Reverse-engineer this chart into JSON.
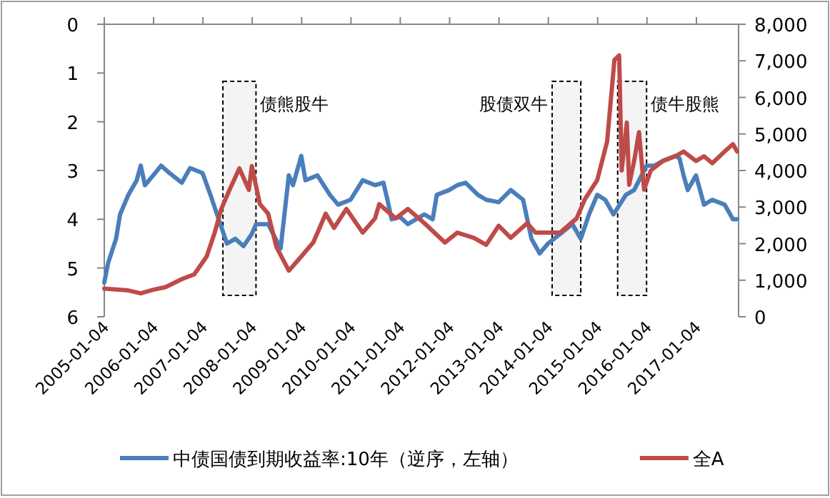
{
  "chart_data": {
    "type": "line",
    "xlim": [
      "2005-01-04",
      "2017-11-12"
    ],
    "xticks": [
      {
        "value": "2005-01-04",
        "label": "2005-01-04"
      },
      {
        "value": "2006-01-04",
        "label": "2006-01-04"
      },
      {
        "value": "2007-01-04",
        "label": "2007-01-04"
      },
      {
        "value": "2008-01-04",
        "label": "2008-01-04"
      },
      {
        "value": "2009-01-04",
        "label": "2009-01-04"
      },
      {
        "value": "2010-01-04",
        "label": "2010-01-04"
      },
      {
        "value": "2011-01-04",
        "label": "2011-01-04"
      },
      {
        "value": "2012-01-04",
        "label": "2012-01-04"
      },
      {
        "value": "2013-01-04",
        "label": "2013-01-04"
      },
      {
        "value": "2014-01-04",
        "label": "2014-01-04"
      },
      {
        "value": "2015-01-04",
        "label": "2015-01-04"
      },
      {
        "value": "2016-01-04",
        "label": "2016-01-04"
      },
      {
        "value": "2017-01-04",
        "label": "2017-01-04"
      }
    ],
    "ylim": [
      6,
      0
    ],
    "yticks": [
      0,
      1,
      2,
      3,
      4,
      5,
      6
    ],
    "y2lim": [
      0,
      8000
    ],
    "y2ticks": [
      0,
      {
        "value": 1000,
        "label": "1,000"
      },
      {
        "value": 2000,
        "label": "2,000"
      },
      {
        "value": 3000,
        "label": "3,000"
      },
      {
        "value": 4000,
        "label": "4,000"
      },
      {
        "value": 5000,
        "label": "5,000"
      },
      {
        "value": 6000,
        "label": "6,000"
      },
      {
        "value": 7000,
        "label": "7,000"
      },
      {
        "value": 8000,
        "label": "8,000"
      }
    ],
    "legend": "bottom",
    "series": [
      {
        "name": "中债国债到期收益率:10年（逆序，左轴）",
        "color": "#4a7ebb",
        "x": [
          "2005-01-04",
          "2005-02",
          "2005-04",
          "2005-05",
          "2005-07",
          "2005-09",
          "2005-10",
          "2005-11",
          "2006-01",
          "2006-03",
          "2006-05",
          "2006-08",
          "2006-10",
          "2007-01",
          "2007-03",
          "2007-05",
          "2007-07",
          "2007-09",
          "2007-11",
          "2008-01",
          "2008-02",
          "2008-05",
          "2008-08",
          "2008-10",
          "2008-11",
          "2009-01",
          "2009-02",
          "2009-05",
          "2009-08",
          "2009-10",
          "2010-01",
          "2010-04",
          "2010-07",
          "2010-09",
          "2010-10",
          "2010-11",
          "2011-01",
          "2011-03",
          "2011-07",
          "2011-09",
          "2011-10",
          "2012-01",
          "2012-03",
          "2012-05",
          "2012-08",
          "2012-10",
          "2013-01",
          "2013-04",
          "2013-07",
          "2013-09",
          "2013-11",
          "2014-01",
          "2014-04",
          "2014-07",
          "2014-09",
          "2014-11",
          "2015-01",
          "2015-03",
          "2015-05",
          "2015-08",
          "2015-10",
          "2016-01",
          "2016-03",
          "2016-05",
          "2016-08",
          "2016-09",
          "2016-10",
          "2016-11",
          "2017-01",
          "2017-03",
          "2017-05",
          "2017-08",
          "2017-10",
          "2017-11"
        ],
        "values": [
          5.3,
          4.9,
          4.4,
          3.9,
          3.5,
          3.2,
          2.9,
          3.3,
          3.1,
          2.9,
          3.05,
          3.25,
          2.95,
          3.05,
          3.5,
          4.0,
          4.5,
          4.4,
          4.55,
          4.3,
          4.1,
          4.1,
          4.6,
          3.1,
          3.3,
          2.7,
          3.2,
          3.1,
          3.5,
          3.7,
          3.6,
          3.2,
          3.3,
          3.25,
          3.6,
          4.0,
          3.95,
          4.1,
          3.9,
          4.0,
          3.5,
          3.4,
          3.3,
          3.25,
          3.5,
          3.6,
          3.65,
          3.4,
          3.6,
          4.4,
          4.7,
          4.5,
          4.3,
          4.1,
          4.4,
          3.9,
          3.5,
          3.6,
          3.9,
          3.5,
          3.4,
          2.9,
          2.9,
          2.8,
          2.7,
          2.75,
          3.1,
          3.4,
          3.1,
          3.7,
          3.6,
          3.7,
          4.0,
          4.0
        ]
      },
      {
        "name": "全A",
        "color": "#be4b48",
        "axis": "y2",
        "x": [
          "2005-01-04",
          "2005-07",
          "2005-10",
          "2006-01",
          "2006-04",
          "2006-08",
          "2006-11",
          "2007-02",
          "2007-04",
          "2007-05-20",
          "2007-07-20",
          "2007-10",
          "2007-12-10",
          "2008-01",
          "2008-03",
          "2008-05",
          "2008-07",
          "2008-10",
          "2009-01",
          "2009-04",
          "2009-07",
          "2009-09",
          "2009-12",
          "2010-04",
          "2010-07",
          "2010-08",
          "2010-12",
          "2011-03",
          "2011-07",
          "2011-12",
          "2012-03",
          "2012-07",
          "2012-10",
          "2013-01",
          "2013-04",
          "2013-08",
          "2013-10",
          "2014-01",
          "2014-04",
          "2014-08",
          "2014-10",
          "2015-01",
          "2015-03-15",
          "2015-05-08",
          "2015-06-12",
          "2015-07-01",
          "2015-08-08",
          "2015-08-25",
          "2015-10-01",
          "2015-11-06",
          "2015-12-14",
          "2016-02",
          "2016-05",
          "2016-08",
          "2016-10",
          "2017-01",
          "2017-03",
          "2017-05",
          "2017-08",
          "2017-10",
          "2017-11"
        ],
        "values": [
          770,
          720,
          640,
          740,
          810,
          1030,
          1160,
          1650,
          2300,
          2950,
          3470,
          4060,
          3470,
          4120,
          3080,
          2820,
          1910,
          1260,
          1650,
          2040,
          2820,
          2430,
          2950,
          2300,
          2690,
          3080,
          2690,
          2950,
          2560,
          2030,
          2300,
          2160,
          1970,
          2490,
          2160,
          2560,
          2300,
          2300,
          2300,
          2690,
          3210,
          3740,
          4790,
          7020,
          7150,
          4000,
          5310,
          3610,
          4260,
          5050,
          3480,
          4000,
          4260,
          4390,
          4520,
          4260,
          4390,
          4200,
          4520,
          4720,
          4520
        ]
      }
    ],
    "bands": [
      {
        "axis": "x",
        "from": "2007-06",
        "to": "2008-02",
        "label": "债熊股牛"
      },
      {
        "axis": "x",
        "from": "2014-02",
        "to": "2014-09",
        "label": "股债双牛"
      },
      {
        "axis": "x",
        "from": "2015-06",
        "to": "2016-01",
        "label": "债牛股熊"
      }
    ]
  }
}
